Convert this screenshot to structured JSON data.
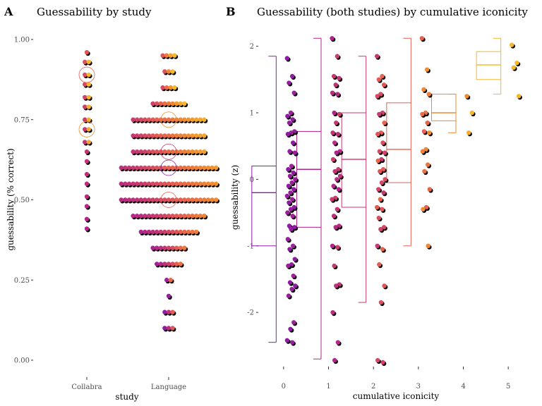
{
  "colors": {
    "purple": "#8E1AA6",
    "magenta": "#B0258C",
    "rose": "#C83A6F",
    "salmon": "#E8604F",
    "orange": "#F08A30",
    "gold": "#F5B72A",
    "yellow": "#F8D12A",
    "shadow": "#000000"
  },
  "chart_data": [
    {
      "type": "scatter",
      "panel": "A",
      "title": "Guessability by study",
      "xlabel": "study",
      "ylabel": "guessability (% correct)",
      "categories": [
        "Collabra",
        "Language"
      ],
      "ylim": [
        0,
        1
      ],
      "yticks": [
        "0.00",
        "0.25",
        "0.50",
        "0.75",
        "1.00"
      ],
      "grid": false,
      "series": [
        {
          "category": "Collabra",
          "levels": [
            {
              "y": 0.96,
              "n": 1
            },
            {
              "y": 0.93,
              "n": 2
            },
            {
              "y": 0.89,
              "n": 2
            },
            {
              "y": 0.86,
              "n": 2
            },
            {
              "y": 0.82,
              "n": 2
            },
            {
              "y": 0.79,
              "n": 2
            },
            {
              "y": 0.75,
              "n": 2
            },
            {
              "y": 0.72,
              "n": 2
            },
            {
              "y": 0.68,
              "n": 2
            },
            {
              "y": 0.65,
              "n": 1
            },
            {
              "y": 0.62,
              "n": 1
            },
            {
              "y": 0.58,
              "n": 1
            },
            {
              "y": 0.55,
              "n": 1
            },
            {
              "y": 0.51,
              "n": 1
            },
            {
              "y": 0.48,
              "n": 1
            },
            {
              "y": 0.44,
              "n": 1
            },
            {
              "y": 0.41,
              "n": 1
            }
          ],
          "medians": [
            0.89,
            0.72
          ]
        },
        {
          "category": "Language",
          "levels": [
            {
              "y": 0.95,
              "n": 4
            },
            {
              "y": 0.9,
              "n": 3
            },
            {
              "y": 0.85,
              "n": 4
            },
            {
              "y": 0.8,
              "n": 9
            },
            {
              "y": 0.75,
              "n": 19
            },
            {
              "y": 0.7,
              "n": 19
            },
            {
              "y": 0.65,
              "n": 19
            },
            {
              "y": 0.6,
              "n": 25
            },
            {
              "y": 0.55,
              "n": 25
            },
            {
              "y": 0.5,
              "n": 25
            },
            {
              "y": 0.45,
              "n": 19
            },
            {
              "y": 0.4,
              "n": 15
            },
            {
              "y": 0.35,
              "n": 9
            },
            {
              "y": 0.3,
              "n": 7
            },
            {
              "y": 0.25,
              "n": 2
            },
            {
              "y": 0.2,
              "n": 1
            },
            {
              "y": 0.15,
              "n": 3
            },
            {
              "y": 0.1,
              "n": 3
            }
          ],
          "medians": [
            0.75,
            0.65,
            0.6,
            0.5
          ]
        }
      ]
    },
    {
      "type": "scatter",
      "panel": "B",
      "title": "Guessability (both studies) by cumulative iconicity",
      "xlabel": "cumulative iconicity",
      "ylabel": "guessability (z)",
      "xlim": [
        -0.5,
        5.5
      ],
      "ylim": [
        -2.75,
        2.25
      ],
      "xticks": [
        "0",
        "1",
        "2",
        "3",
        "4",
        "5"
      ],
      "yticks": [
        "-2",
        "-1",
        "0",
        "1",
        "2"
      ],
      "grid": false,
      "boxes": [
        {
          "x": 0,
          "min": -2.45,
          "q1": -1.0,
          "median": -0.2,
          "q3": 0.2,
          "max": 1.85
        },
        {
          "x": 1,
          "min": -2.7,
          "q1": -0.72,
          "median": 0.15,
          "q3": 0.72,
          "max": 2.12
        },
        {
          "x": 2,
          "min": -1.85,
          "q1": -0.42,
          "median": 0.3,
          "q3": 1.0,
          "max": 1.85
        },
        {
          "x": 3,
          "min": -1.0,
          "q1": -0.05,
          "median": 0.45,
          "q3": 1.15,
          "max": 2.12
        },
        {
          "x": 4,
          "min": 0.7,
          "q1": 0.88,
          "median": 1.0,
          "q3": 1.28,
          "max": 1.28
        },
        {
          "x": 5,
          "min": 1.28,
          "q1": 1.5,
          "median": 1.72,
          "q3": 1.92,
          "max": 2.12
        }
      ],
      "points": [
        {
          "x": 0,
          "y": [
            1.82,
            1.55,
            1.45,
            1.3,
            1.0,
            0.95,
            0.9,
            0.85,
            0.72,
            0.7,
            0.68,
            0.55,
            0.42,
            0.4,
            0.2,
            0.15,
            0.1,
            0.05,
            0.0,
            -0.05,
            -0.1,
            -0.15,
            -0.2,
            -0.25,
            -0.3,
            -0.35,
            -0.42,
            -0.45,
            -0.5,
            -0.55,
            -0.7,
            -0.72,
            -0.75,
            -0.9,
            -1.0,
            -1.05,
            -1.2,
            -1.28,
            -1.3,
            -1.45,
            -1.55,
            -1.6,
            -1.65,
            -1.75,
            -2.15,
            -2.25,
            -2.42,
            -2.45
          ]
        },
        {
          "x": 1,
          "y": [
            2.12,
            1.85,
            1.55,
            1.52,
            1.42,
            1.3,
            1.28,
            1.0,
            0.98,
            0.85,
            0.7,
            0.68,
            0.55,
            0.42,
            0.4,
            0.3,
            0.15,
            0.12,
            0.05,
            0.0,
            -0.1,
            -0.15,
            -0.28,
            -0.3,
            -0.45,
            -0.55,
            -0.7,
            -0.72,
            -1.0,
            -1.02,
            -1.3,
            -1.58,
            -1.6,
            -2.0,
            -2.45,
            -2.72
          ]
        },
        {
          "x": 2,
          "y": [
            1.85,
            1.55,
            1.5,
            1.42,
            1.28,
            1.25,
            1.0,
            0.98,
            0.85,
            0.7,
            0.68,
            0.55,
            0.42,
            0.4,
            0.3,
            0.28,
            0.15,
            0.12,
            0.0,
            -0.05,
            -0.15,
            -0.2,
            -0.3,
            -0.42,
            -0.45,
            -0.58,
            -0.72,
            -0.75,
            -1.0,
            -1.05,
            -1.28,
            -1.6,
            -1.85,
            -2.72,
            -2.75
          ]
        },
        {
          "x": 3,
          "y": [
            2.12,
            1.65,
            1.35,
            1.28,
            1.0,
            0.98,
            0.85,
            0.72,
            0.7,
            0.45,
            0.42,
            0.22,
            0.12,
            -0.15,
            -0.42,
            -0.45,
            -1.0
          ]
        },
        {
          "x": 4,
          "y": [
            1.25,
            1.0,
            0.7
          ]
        },
        {
          "x": 5,
          "y": [
            2.02,
            1.75,
            1.68,
            1.25
          ]
        }
      ]
    }
  ],
  "figure": {
    "panelA": {
      "letter": "A"
    },
    "panelB": {
      "letter": "B"
    }
  }
}
